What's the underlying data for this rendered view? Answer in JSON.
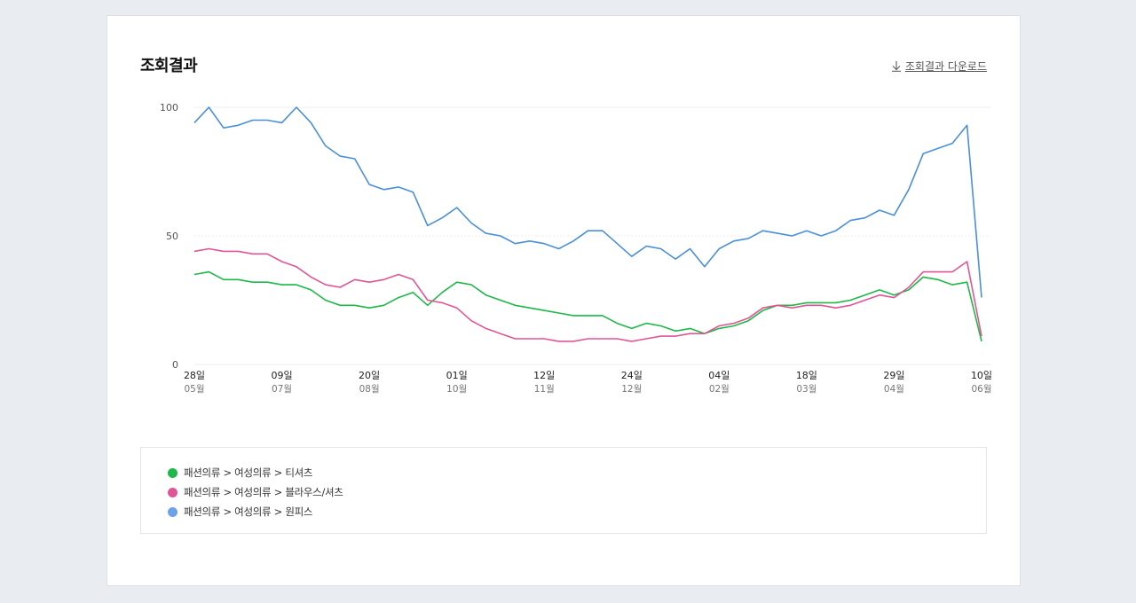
{
  "panel": {
    "title": "조회결과",
    "download_label": "조회결과 다운로드"
  },
  "chart_data": {
    "type": "line",
    "ylim": [
      0,
      100
    ],
    "y_ticks": [
      0,
      50,
      100
    ],
    "n_points": 55,
    "x_ticks": [
      {
        "index": 0,
        "day": "28일",
        "month": "05월"
      },
      {
        "index": 6,
        "day": "09일",
        "month": "07월"
      },
      {
        "index": 12,
        "day": "20일",
        "month": "08월"
      },
      {
        "index": 18,
        "day": "01일",
        "month": "10월"
      },
      {
        "index": 24,
        "day": "12일",
        "month": "11월"
      },
      {
        "index": 30,
        "day": "24일",
        "month": "12월"
      },
      {
        "index": 36,
        "day": "04일",
        "month": "02월"
      },
      {
        "index": 42,
        "day": "18일",
        "month": "03월"
      },
      {
        "index": 48,
        "day": "29일",
        "month": "04월"
      },
      {
        "index": 54,
        "day": "10일",
        "month": "06월"
      }
    ],
    "series": [
      {
        "name": "패션의류 > 여성의류 > 티셔츠",
        "color": "#1db847",
        "values": [
          35,
          36,
          33,
          33,
          32,
          32,
          31,
          31,
          29,
          25,
          23,
          23,
          22,
          23,
          26,
          28,
          23,
          28,
          32,
          31,
          27,
          25,
          23,
          22,
          21,
          20,
          19,
          19,
          19,
          16,
          14,
          16,
          15,
          13,
          14,
          12,
          14,
          15,
          17,
          21,
          23,
          23,
          24,
          24,
          24,
          25,
          27,
          29,
          27,
          29,
          34,
          33,
          31,
          32,
          9
        ]
      },
      {
        "name": "패션의류 > 여성의류 > 블라우스/셔츠",
        "color": "#e05596",
        "values": [
          44,
          45,
          44,
          44,
          43,
          43,
          40,
          38,
          34,
          31,
          30,
          33,
          32,
          33,
          35,
          33,
          25,
          24,
          22,
          17,
          14,
          12,
          10,
          10,
          10,
          9,
          9,
          10,
          10,
          10,
          9,
          10,
          11,
          11,
          12,
          12,
          15,
          16,
          18,
          22,
          23,
          22,
          23,
          23,
          22,
          23,
          25,
          27,
          26,
          30,
          36,
          36,
          36,
          40,
          11
        ]
      },
      {
        "name": "패션의류 > 여성의류 > 원피스",
        "color": "#4a8fdb",
        "values": [
          94,
          100,
          92,
          93,
          95,
          95,
          94,
          100,
          94,
          85,
          81,
          80,
          70,
          68,
          69,
          67,
          54,
          57,
          61,
          55,
          51,
          50,
          47,
          48,
          47,
          45,
          48,
          52,
          52,
          47,
          42,
          46,
          45,
          41,
          45,
          38,
          45,
          48,
          49,
          52,
          51,
          50,
          52,
          50,
          52,
          56,
          57,
          60,
          58,
          68,
          82,
          84,
          86,
          93,
          26
        ]
      }
    ]
  }
}
